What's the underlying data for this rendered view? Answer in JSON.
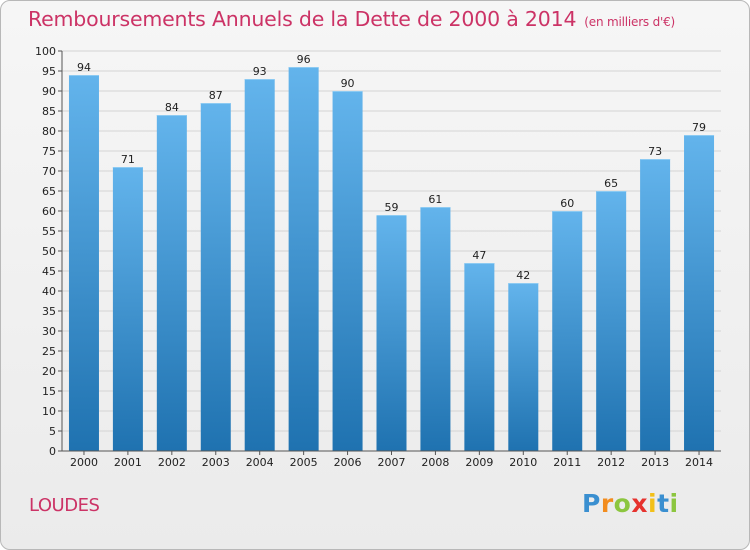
{
  "title": "Remboursements Annuels de la Dette de 2000 à 2014",
  "unit": "(en milliers d'€)",
  "commune": "LOUDES",
  "brand": {
    "letters": [
      "P",
      "r",
      "o",
      "x",
      "i",
      "t",
      "i"
    ],
    "colors": [
      "#3a8fd0",
      "#f28c1e",
      "#8cc63f",
      "#e6322e",
      "#f2c019",
      "#3a8fd0",
      "#8cc63f"
    ]
  },
  "colors": {
    "title": "#cc3366",
    "bar_top": "#63b4ec",
    "bar_bottom": "#1f72b0",
    "grid": "#d4d4d4",
    "axis": "#555555"
  },
  "chart_data": {
    "type": "bar",
    "title": "Remboursements Annuels de la Dette de 2000 à 2014",
    "ylabel": "",
    "xlabel": "",
    "categories": [
      "2000",
      "2001",
      "2002",
      "2003",
      "2004",
      "2005",
      "2006",
      "2007",
      "2008",
      "2009",
      "2010",
      "2011",
      "2012",
      "2013",
      "2014"
    ],
    "values": [
      94,
      71,
      84,
      87,
      93,
      96,
      90,
      59,
      61,
      47,
      42,
      60,
      65,
      73,
      79
    ],
    "ylim": [
      0,
      100
    ],
    "yticks": [
      0,
      5,
      10,
      15,
      20,
      25,
      30,
      35,
      40,
      45,
      50,
      55,
      60,
      65,
      70,
      75,
      80,
      85,
      90,
      95,
      100
    ],
    "grid": true,
    "data_labels": true
  }
}
